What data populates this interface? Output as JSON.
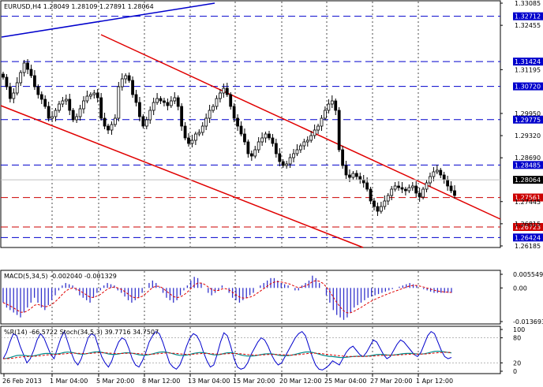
{
  "main": {
    "header": "EURUSD,H4  1.28049 1.28109 1.27891 1.28064",
    "price_min": 1.26185,
    "price_max": 1.33085,
    "ticks": [
      {
        "v": 1.33085,
        "t": "1.33085"
      },
      {
        "v": 1.32455,
        "t": "1.32455"
      },
      {
        "v": 1.31195,
        "t": "1.31195"
      },
      {
        "v": 1.2995,
        "t": "1.29950"
      },
      {
        "v": 1.2932,
        "t": "1.29320"
      },
      {
        "v": 1.2869,
        "t": "1.28690"
      },
      {
        "v": 1.27445,
        "t": "1.27445"
      },
      {
        "v": 1.26815,
        "t": "1.26815"
      },
      {
        "v": 1.26185,
        "t": "1.26185"
      }
    ],
    "levels": [
      {
        "v": 1.32712,
        "t": "1.32712",
        "color": "#0000cc"
      },
      {
        "v": 1.31424,
        "t": "1.31424",
        "color": "#0000cc"
      },
      {
        "v": 1.3072,
        "t": "1.30720",
        "color": "#0000cc"
      },
      {
        "v": 1.29775,
        "t": "1.29775",
        "color": "#0000cc"
      },
      {
        "v": 1.28485,
        "t": "1.28485",
        "color": "#0000cc"
      },
      {
        "v": 1.27561,
        "t": "1.27561",
        "color": "#cc0000"
      },
      {
        "v": 1.26723,
        "t": "1.26723",
        "color": "#cc0000"
      },
      {
        "v": 1.26424,
        "t": "1.26424",
        "color": "#0000cc"
      }
    ],
    "current": {
      "v": 1.28064,
      "t": "1.28064"
    }
  },
  "macd": {
    "label": "MACD(5,34,5) -0.002040 -0.001329",
    "ticks": [
      {
        "v": 0.005549,
        "t": "0.005549"
      },
      {
        "v": 0.0,
        "t": "0.00"
      },
      {
        "v": -0.013693,
        "t": "-0.013693"
      }
    ]
  },
  "osc": {
    "label": "%R(14) -66.5722  Stoch(34,5,3) 39.7716 34.7507",
    "ticks": [
      {
        "v": 100,
        "t": "100"
      },
      {
        "v": 80,
        "t": "80"
      },
      {
        "v": 20,
        "t": "20"
      },
      {
        "v": 0,
        "t": "0"
      }
    ]
  },
  "x_axis": [
    "26 Feb 2013",
    "1 Mar 04:00",
    "5 Mar 20:00",
    "8 Mar 12:00",
    "13 Mar 04:00",
    "15 Mar 20:00",
    "20 Mar 12:00",
    "25 Mar 04:00",
    "27 Mar 20:00",
    "1 Apr 12:00"
  ],
  "colors": {
    "candle": "#000000",
    "trend_red": "#e00000",
    "trend_blue": "#0000cc",
    "macd_hist": "#3333cc",
    "macd_signal": "#e00000",
    "wpr": "#0000cc",
    "stoch_main": "#008b8b",
    "stoch_signal": "#e00000"
  }
}
